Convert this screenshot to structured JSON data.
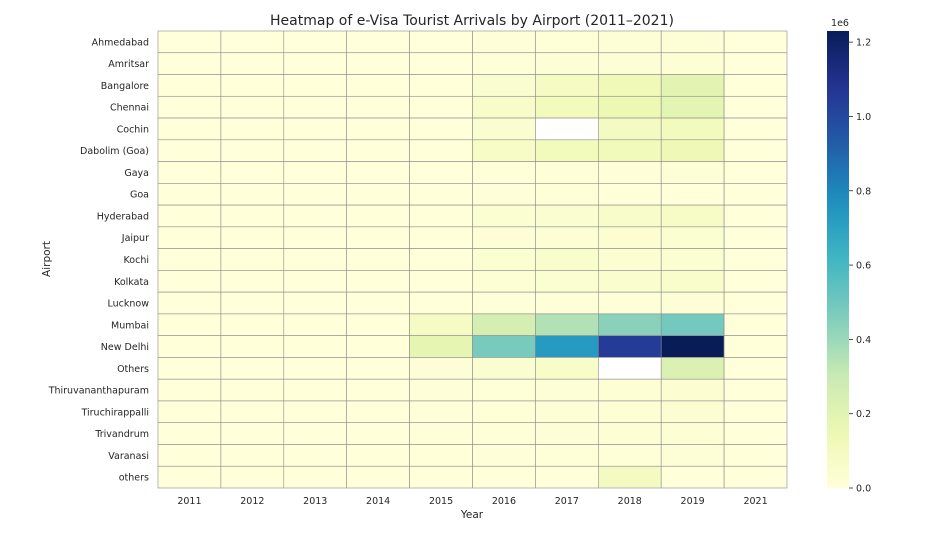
{
  "chart_data": {
    "type": "heatmap",
    "title": "Heatmap of e-Visa Tourist Arrivals by Airport (2011–2021)",
    "xlabel": "Year",
    "ylabel": "Airport",
    "x_categories": [
      "2011",
      "2012",
      "2013",
      "2014",
      "2015",
      "2016",
      "2017",
      "2018",
      "2019",
      "2021"
    ],
    "y_categories": [
      "Ahmedabad",
      "Amritsar",
      "Bangalore",
      "Chennai",
      "Cochin",
      "Dabolim (Goa)",
      "Gaya",
      "Goa",
      "Hyderabad",
      "Jaipur",
      "Kochi",
      "Kolkata",
      "Lucknow",
      "Mumbai",
      "New Delhi",
      "Others",
      "Thiruvananthapuram",
      "Tiruchirappalli",
      "Trivandrum",
      "Varanasi",
      "others"
    ],
    "values": [
      [
        0,
        0,
        0,
        0,
        0,
        5000,
        10000,
        12000,
        15000,
        0
      ],
      [
        0,
        0,
        0,
        0,
        0,
        8000,
        12000,
        15000,
        18000,
        0
      ],
      [
        0,
        0,
        0,
        0,
        0,
        40000,
        80000,
        130000,
        200000,
        0
      ],
      [
        0,
        0,
        0,
        0,
        0,
        60000,
        110000,
        150000,
        190000,
        0
      ],
      [
        0,
        0,
        0,
        0,
        0,
        40000,
        null,
        90000,
        110000,
        0
      ],
      [
        0,
        0,
        0,
        0,
        0,
        70000,
        110000,
        120000,
        140000,
        0
      ],
      [
        0,
        0,
        0,
        0,
        0,
        5000,
        8000,
        10000,
        12000,
        0
      ],
      [
        0,
        0,
        0,
        0,
        0,
        5000,
        8000,
        0,
        0,
        0
      ],
      [
        0,
        0,
        0,
        0,
        0,
        30000,
        40000,
        60000,
        70000,
        0
      ],
      [
        0,
        0,
        0,
        0,
        0,
        15000,
        20000,
        25000,
        30000,
        0
      ],
      [
        0,
        0,
        0,
        0,
        0,
        30000,
        50000,
        25000,
        30000,
        0
      ],
      [
        0,
        0,
        0,
        0,
        0,
        20000,
        30000,
        45000,
        55000,
        0
      ],
      [
        0,
        0,
        0,
        0,
        0,
        5000,
        8000,
        10000,
        12000,
        0
      ],
      [
        0,
        0,
        0,
        0,
        80000,
        250000,
        350000,
        440000,
        490000,
        0
      ],
      [
        0,
        0,
        0,
        0,
        180000,
        480000,
        730000,
        1050000,
        1230000,
        0
      ],
      [
        0,
        0,
        0,
        0,
        15000,
        40000,
        60000,
        null,
        230000,
        0
      ],
      [
        0,
        0,
        0,
        0,
        5000,
        10000,
        15000,
        20000,
        25000,
        0
      ],
      [
        0,
        0,
        0,
        0,
        5000,
        10000,
        15000,
        20000,
        25000,
        0
      ],
      [
        0,
        0,
        0,
        0,
        5000,
        10000,
        15000,
        20000,
        20000,
        0
      ],
      [
        0,
        0,
        0,
        0,
        3000,
        5000,
        8000,
        10000,
        12000,
        0
      ],
      [
        0,
        0,
        0,
        0,
        0,
        0,
        0,
        90000,
        0,
        0
      ]
    ],
    "colorbar": {
      "colormap": "YlGnBu",
      "range": [
        0,
        1230000
      ],
      "multiplier_label": "1e6",
      "ticks": [
        0,
        200000,
        400000,
        600000,
        800000,
        1000000,
        1200000
      ],
      "tick_labels": [
        "0.0",
        "0.2",
        "0.4",
        "0.6",
        "0.8",
        "1.0",
        "1.2"
      ]
    },
    "grid": true,
    "legend": "colorbar-right"
  }
}
